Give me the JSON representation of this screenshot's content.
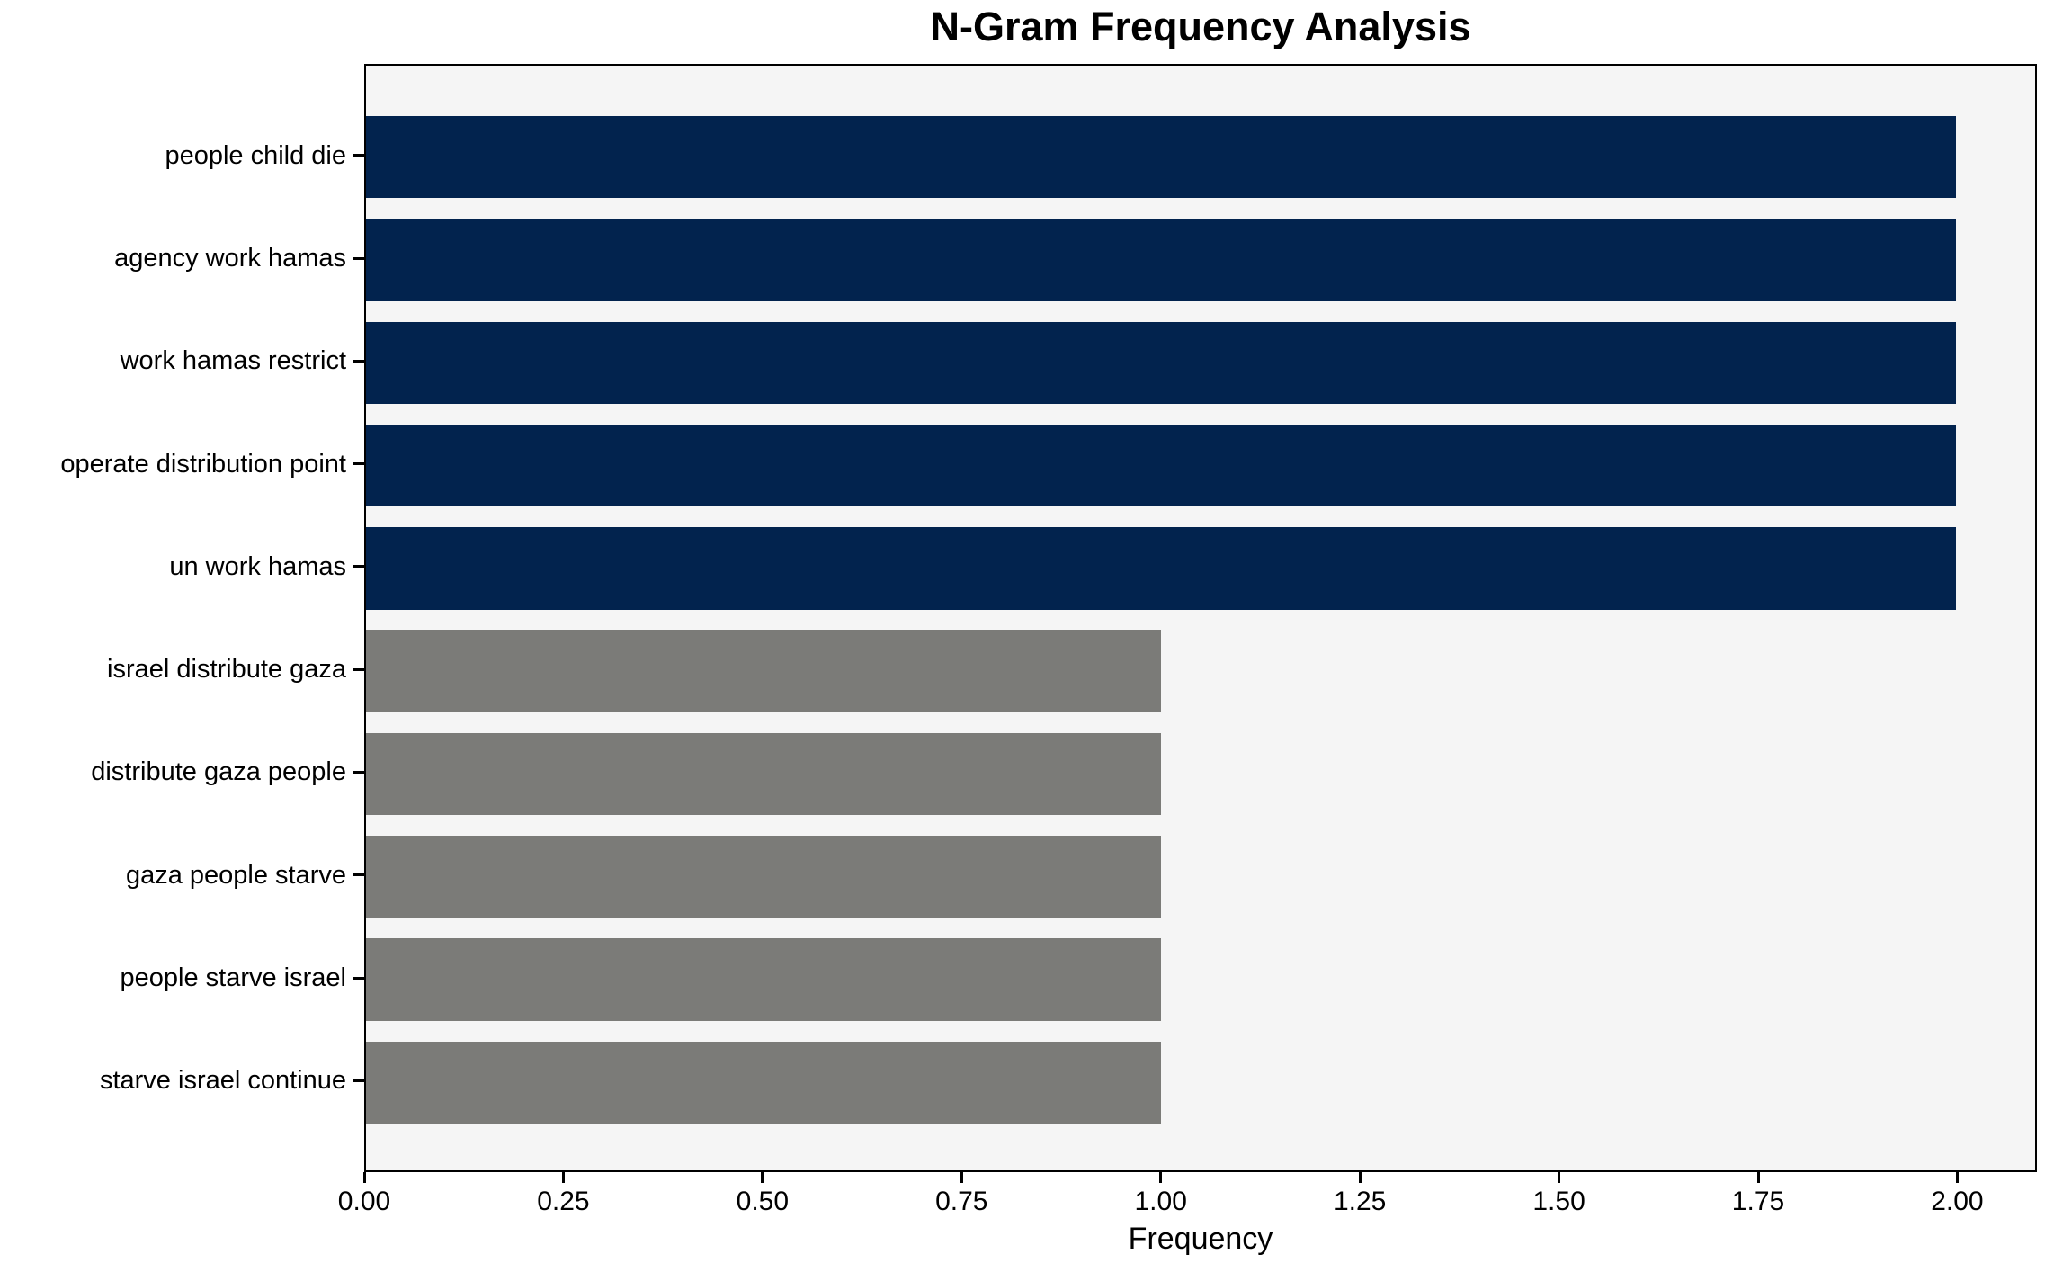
{
  "chart_data": {
    "type": "bar",
    "orientation": "horizontal",
    "title": "N-Gram Frequency Analysis",
    "xlabel": "Frequency",
    "ylabel": "",
    "categories": [
      "people child die",
      "agency work hamas",
      "work hamas restrict",
      "operate distribution point",
      "un work hamas",
      "israel distribute gaza",
      "distribute gaza people",
      "gaza people starve",
      "people starve israel",
      "starve israel continue"
    ],
    "values": [
      2,
      2,
      2,
      2,
      2,
      1,
      1,
      1,
      1,
      1
    ],
    "bar_colors": [
      "#02234e",
      "#02234e",
      "#02234e",
      "#02234e",
      "#02234e",
      "#7b7b78",
      "#7b7b78",
      "#7b7b78",
      "#7b7b78",
      "#7b7b78"
    ],
    "xlim": [
      0,
      2.1
    ],
    "xticks": [
      "0.00",
      "0.25",
      "0.50",
      "0.75",
      "1.00",
      "1.25",
      "1.50",
      "1.75",
      "2.00"
    ],
    "xtick_values": [
      0,
      0.25,
      0.5,
      0.75,
      1.0,
      1.25,
      1.5,
      1.75,
      2.0
    ],
    "grid": false,
    "legend": null,
    "colors": {
      "high_frequency_bar": "#02234e",
      "low_frequency_bar": "#7b7b78",
      "plot_background": "#f5f5f5",
      "figure_background": "#ffffff",
      "spine": "#000000",
      "text": "#000000"
    }
  }
}
